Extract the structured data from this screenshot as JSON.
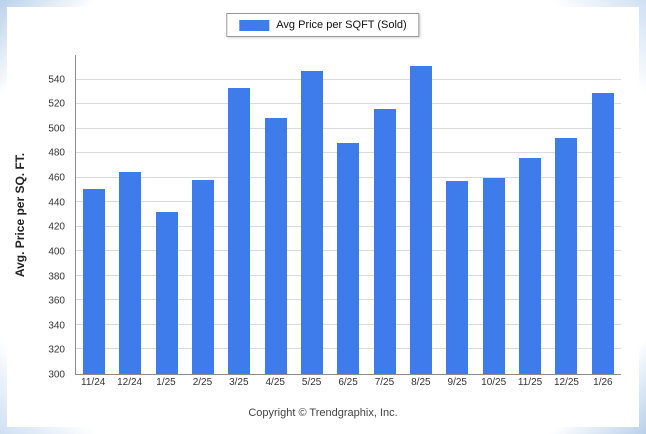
{
  "legend": {
    "label": "Avg Price per SQFT (Sold)"
  },
  "footer": {
    "text": "Copyright © Trendgraphix, Inc."
  },
  "colors": {
    "bar": "#3d7cea",
    "grid": "#dadada",
    "axis": "#8c8c8c"
  },
  "chart_data": {
    "type": "bar",
    "title": "",
    "xlabel": "",
    "ylabel": "Avg. Price per SQ. FT.",
    "categories": [
      "11/24",
      "12/24",
      "1/25",
      "2/25",
      "3/25",
      "4/25",
      "5/25",
      "6/25",
      "7/25",
      "8/25",
      "9/25",
      "10/25",
      "11/25",
      "12/25",
      "1/26"
    ],
    "values": [
      451,
      465,
      432,
      458,
      533,
      509,
      547,
      488,
      516,
      551,
      457,
      460,
      476,
      492,
      529
    ],
    "series_name": "Avg Price per SQFT (Sold)",
    "ylim": [
      300,
      560
    ],
    "yticks": [
      300,
      320,
      340,
      360,
      380,
      400,
      420,
      440,
      460,
      480,
      500,
      520,
      540
    ],
    "grid": "horizontal",
    "legend_position": "top-center"
  }
}
